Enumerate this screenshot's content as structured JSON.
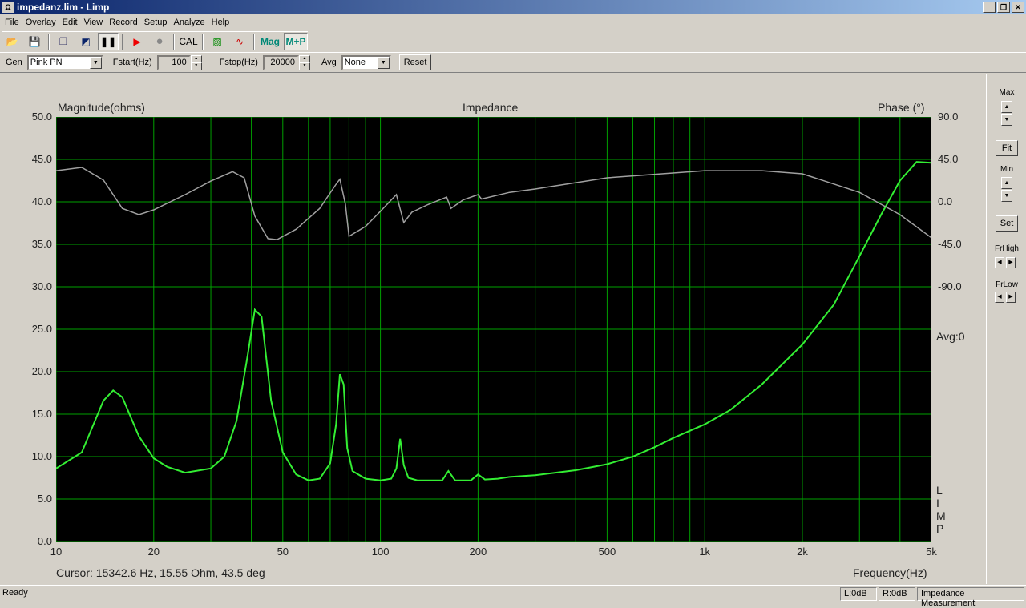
{
  "window": {
    "title": "impedanz.lim - Limp",
    "icon": "ohm-icon"
  },
  "menu": [
    "File",
    "Overlay",
    "Edit",
    "View",
    "Record",
    "Setup",
    "Analyze",
    "Help"
  ],
  "toolbar": {
    "cal": "CAL",
    "mag": "Mag",
    "mp": "M+P",
    "icons": [
      "open-folder-icon",
      "save-icon",
      "copy-icon",
      "color-icon",
      "pause-icon",
      "play-icon",
      "record-icon",
      "cal-button",
      "mag-graph-icon",
      "wave-icon",
      "mag-button",
      "mp-button"
    ]
  },
  "params": {
    "gen_label": "Gen",
    "gen_value": "Pink PN",
    "fstart_label": "Fstart(Hz)",
    "fstart_value": "100",
    "fstop_label": "Fstop(Hz)",
    "fstop_value": "20000",
    "avg_label": "Avg",
    "avg_value": "None",
    "reset": "Reset"
  },
  "side": {
    "max": "Max",
    "fit": "Fit",
    "min": "Min",
    "set": "Set",
    "frhigh": "FrHigh",
    "frlow": "FrLow"
  },
  "plot": {
    "cursor": "Cursor: 15342.6 Hz, 15.55 Ohm, 43.5 deg",
    "avg": "Avg:0",
    "limp": [
      "L",
      "I",
      "M",
      "P"
    ]
  },
  "status": {
    "ready": "Ready",
    "left": "L:0dB",
    "right": "R:0dB",
    "mode": "Impedance Measurement"
  },
  "chart_data": {
    "type": "line",
    "title": "Impedance",
    "xlabel": "Frequency(Hz)",
    "ylabel": "Magnitude(ohms)",
    "y2label": "Phase (°)",
    "xscale": "log",
    "xlim": [
      10,
      5000
    ],
    "ylim": [
      0,
      50
    ],
    "y2lim": [
      -360,
      90
    ],
    "grid": true,
    "background": "#000000",
    "grid_color": "#00a000",
    "xticks": [
      {
        "v": 10,
        "l": "10"
      },
      {
        "v": 20,
        "l": "20"
      },
      {
        "v": 50,
        "l": "50"
      },
      {
        "v": 100,
        "l": "100"
      },
      {
        "v": 200,
        "l": "200"
      },
      {
        "v": 500,
        "l": "500"
      },
      {
        "v": 1000,
        "l": "1k"
      },
      {
        "v": 2000,
        "l": "2k"
      },
      {
        "v": 5000,
        "l": "5k"
      }
    ],
    "yticks": [
      "0.0",
      "5.0",
      "10.0",
      "15.0",
      "20.0",
      "25.0",
      "30.0",
      "35.0",
      "40.0",
      "45.0",
      "50.0"
    ],
    "y2ticks": [
      "90.0",
      "45.0",
      "0.0",
      "-45.0",
      "-90.0"
    ],
    "series": [
      {
        "color": "#33ee33",
        "axis": "left",
        "x": [
          10,
          12,
          14,
          15,
          16,
          18,
          20,
          22,
          25,
          30,
          33,
          36,
          39,
          41,
          43,
          46,
          50,
          55,
          60,
          65,
          70,
          73,
          75,
          77,
          79,
          82,
          90,
          100,
          108,
          112,
          115,
          118,
          122,
          130,
          140,
          155,
          162,
          170,
          190,
          200,
          210,
          230,
          250,
          300,
          400,
          500,
          600,
          700,
          800,
          1000,
          1200,
          1500,
          2000,
          2500,
          3000,
          3500,
          4000,
          4500,
          5000
        ],
        "y": [
          8.6,
          10.5,
          16.6,
          17.8,
          17,
          12.4,
          9.8,
          8.8,
          8.1,
          8.6,
          10,
          14.2,
          22,
          27.3,
          26.5,
          16.6,
          10.5,
          7.9,
          7.2,
          7.4,
          9.2,
          13.8,
          19.7,
          18.5,
          11,
          8.3,
          7.4,
          7.2,
          7.4,
          8.6,
          12.1,
          9,
          7.5,
          7.2,
          7.2,
          7.2,
          8.3,
          7.2,
          7.2,
          7.9,
          7.3,
          7.4,
          7.6,
          7.8,
          8.4,
          9.1,
          10,
          11.1,
          12.2,
          13.8,
          15.5,
          18.5,
          23.2,
          27.9,
          33.6,
          38.5,
          42.5,
          44.7,
          44.6
        ]
      },
      {
        "color": "#a0a0a0",
        "axis": "right",
        "x": [
          10,
          12,
          14,
          16,
          18,
          20,
          25,
          30,
          35,
          38,
          41,
          45,
          48,
          55,
          65,
          73,
          75,
          78,
          80,
          90,
          100,
          112,
          118,
          125,
          140,
          160,
          165,
          180,
          200,
          205,
          250,
          300,
          500,
          1000,
          1500,
          2000,
          3000,
          4000,
          5000
        ],
        "y": [
          33,
          36.5,
          23,
          -7,
          -13.6,
          -8.5,
          7.6,
          22,
          32,
          25.5,
          -15,
          -39,
          -40,
          -29,
          -7,
          18.7,
          24,
          -2.5,
          -36.5,
          -26,
          -10,
          7.6,
          -22,
          -11,
          -3,
          5,
          -7,
          2,
          7.6,
          3,
          10,
          13.6,
          25.5,
          33,
          33,
          29.7,
          10,
          -13.6,
          -38
        ]
      }
    ]
  }
}
